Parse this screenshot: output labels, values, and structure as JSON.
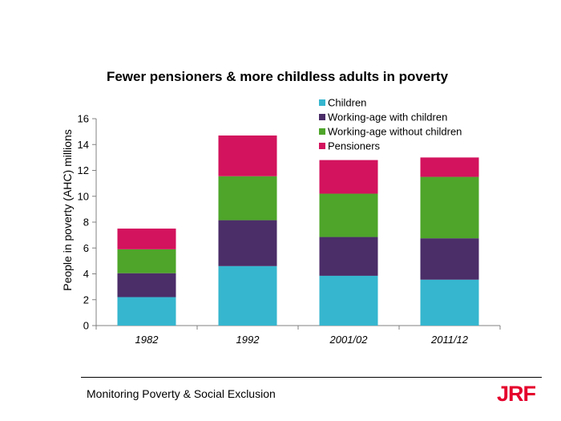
{
  "chart_data": {
    "type": "bar",
    "stacked": true,
    "title": "Fewer pensioners & more childless adults in poverty",
    "ylabel": "People in poverty (AHC)  millions",
    "xlabel": "",
    "categories": [
      "1982",
      "1992",
      "2001/02",
      "2011/12"
    ],
    "ylim": [
      0,
      16
    ],
    "yticks": [
      0,
      2,
      4,
      6,
      8,
      10,
      12,
      14,
      16
    ],
    "grid": false,
    "legend": "top-right",
    "series": [
      {
        "name": "Children",
        "color": "#36b6cf",
        "values": [
          2.2,
          4.6,
          3.85,
          3.55
        ]
      },
      {
        "name": "Working-age with children",
        "color": "#4b2d68",
        "values": [
          1.85,
          3.55,
          3.0,
          3.2
        ]
      },
      {
        "name": "Working-age without children",
        "color": "#4ea52a",
        "values": [
          1.85,
          3.4,
          3.35,
          4.75
        ]
      },
      {
        "name": "Pensioners",
        "color": "#d3135d",
        "values": [
          1.6,
          3.15,
          2.6,
          1.5
        ]
      }
    ]
  },
  "footer": {
    "text": "Monitoring Poverty & Social Exclusion",
    "brand": "JRF"
  }
}
